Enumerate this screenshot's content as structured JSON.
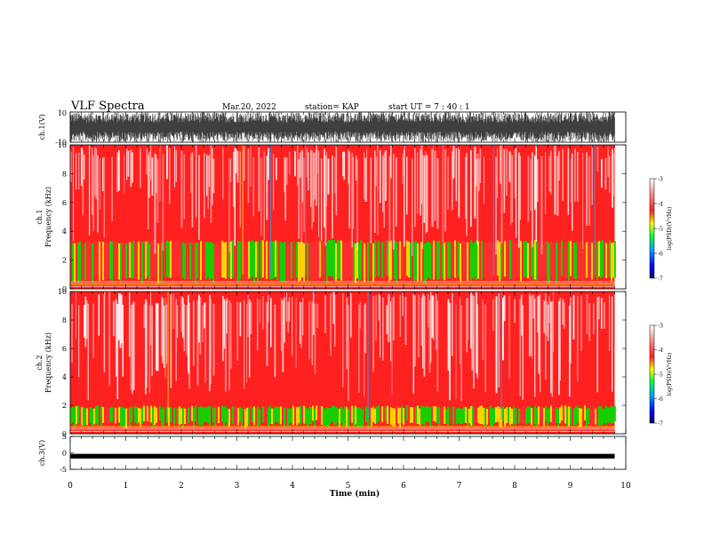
{
  "header": {
    "title": "VLF Spectra",
    "date": "Mar.20, 2022",
    "station": "station= KAP",
    "start_ut": "start  UT  =   7 : 40 : 1"
  },
  "colors": {
    "spectrogram_high": "#ff2020",
    "spectrogram_low": "#00e000",
    "mid": "#ffe600",
    "colorbar_stops": [
      "#000060",
      "#0000ff",
      "#00a0ff",
      "#00ff40",
      "#ffff00",
      "#ff2020",
      "#ffd0d0",
      "#ffffff"
    ]
  },
  "chart_data": [
    {
      "type": "line",
      "name_label": "ch.1(V)",
      "ylabel": "ch.1(V)",
      "ylim": [
        -10,
        10
      ],
      "yticks": [
        "10",
        "-10"
      ],
      "xlim": [
        0,
        10
      ],
      "description": "waveform saturating between about -10 and 10 V across 0 to 9.8 min"
    },
    {
      "type": "heatmap",
      "ylabel": "ch.1\nFrequency (kHz)",
      "ylabel_lines": [
        "ch.1",
        "Frequency  (kHz)"
      ],
      "ylim": [
        0,
        10
      ],
      "yticks": [
        "0",
        "2",
        "4",
        "6",
        "8",
        "10"
      ],
      "xlim": [
        0,
        10
      ],
      "colorbar": {
        "label": "log(PSD)(V²/Hz)",
        "range": [
          -7,
          -3
        ],
        "ticks": [
          "-3",
          "-4",
          "-5",
          "-6",
          "-7"
        ]
      },
      "bands": [
        {
          "from_khz": 0,
          "to_khz": 0.6,
          "level": "high"
        },
        {
          "from_khz": 0.6,
          "to_khz": 3.4,
          "level": "mixed-low"
        },
        {
          "from_khz": 3.4,
          "to_khz": 10,
          "level": "high"
        }
      ]
    },
    {
      "type": "heatmap",
      "ylabel_lines": [
        "ch.2",
        "Frequency  (kHz)"
      ],
      "ylim": [
        0,
        10
      ],
      "yticks": [
        "0",
        "2",
        "4",
        "6",
        "8",
        "10"
      ],
      "xlim": [
        0,
        10
      ],
      "colorbar": {
        "label": "log(PSD)(V²/Hz)",
        "range": [
          -7,
          -3
        ],
        "ticks": [
          "-3",
          "-4",
          "-5",
          "-6",
          "-7"
        ]
      },
      "bands": [
        {
          "from_khz": 0,
          "to_khz": 0.6,
          "level": "high"
        },
        {
          "from_khz": 0.6,
          "to_khz": 2.0,
          "level": "low"
        },
        {
          "from_khz": 2.0,
          "to_khz": 10,
          "level": "high"
        }
      ]
    },
    {
      "type": "line",
      "ylabel": "ch.3(V)",
      "ylim": [
        -5,
        5
      ],
      "yticks": [
        "5",
        "0",
        "-5"
      ],
      "xlim": [
        0,
        10
      ],
      "description": "narrow band around -1 V"
    }
  ],
  "xaxis": {
    "label": "Time  (min)",
    "ticks": [
      "0",
      "1",
      "2",
      "3",
      "4",
      "5",
      "6",
      "7",
      "8",
      "9",
      "10"
    ],
    "data_end_min": 9.8
  }
}
